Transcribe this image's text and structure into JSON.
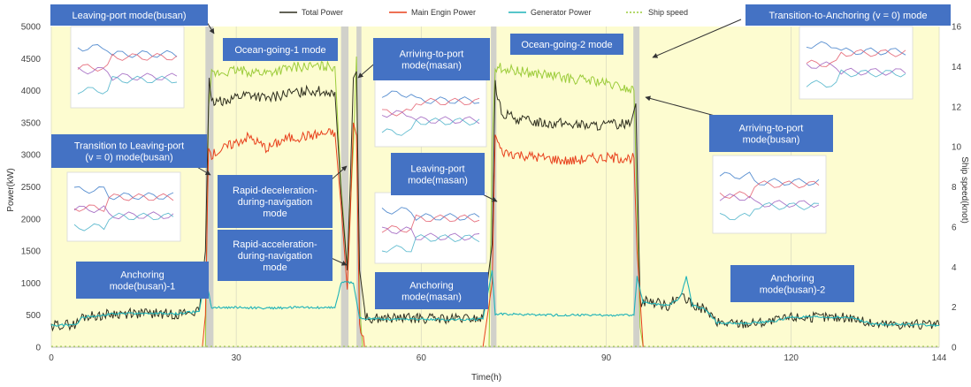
{
  "chart_data": {
    "type": "line",
    "xlabel": "Time(h)",
    "ylabel_left": "Power(kW)",
    "ylabel_right": "Ship speed(knot)",
    "xlim": [
      0,
      144
    ],
    "ylim_left": [
      0,
      5000
    ],
    "ylim_right": [
      0,
      16
    ],
    "x_ticks": [
      0,
      30,
      60,
      90,
      120,
      144
    ],
    "y_ticks_left": [
      0,
      500,
      1000,
      1500,
      2000,
      2500,
      3000,
      3500,
      4000,
      4500,
      5000
    ],
    "y_ticks_right": [
      0,
      2,
      4,
      6,
      8,
      10,
      12,
      14,
      16
    ],
    "legend_position": "top",
    "colors": {
      "plot_bg": "#fdfcd0",
      "total": "#2f2f1f",
      "main": "#e8401c",
      "generator": "#1fb3b8",
      "speed": "#9ccc3a",
      "band": "#c9c9c9",
      "label_box": "#4472c4"
    },
    "series": [
      {
        "name": "Total Power",
        "axis": "left",
        "points": [
          [
            0,
            340
          ],
          [
            4,
            350
          ],
          [
            5,
            470
          ],
          [
            10,
            520
          ],
          [
            15,
            530
          ],
          [
            20,
            520
          ],
          [
            24,
            560
          ],
          [
            25,
            1500
          ],
          [
            25.6,
            4200
          ],
          [
            26,
            3800
          ],
          [
            29,
            3880
          ],
          [
            32,
            3950
          ],
          [
            35,
            3870
          ],
          [
            38,
            3950
          ],
          [
            42,
            4000
          ],
          [
            46,
            3980
          ],
          [
            47,
            2400
          ],
          [
            48,
            1200
          ],
          [
            48.5,
            2600
          ],
          [
            49,
            4200
          ],
          [
            49.5,
            4300
          ],
          [
            50,
            1200
          ],
          [
            51,
            460
          ],
          [
            55,
            450
          ],
          [
            60,
            450
          ],
          [
            65,
            440
          ],
          [
            70,
            450
          ],
          [
            71.5,
            1600
          ],
          [
            72,
            4100
          ],
          [
            73,
            3650
          ],
          [
            76,
            3550
          ],
          [
            80,
            3500
          ],
          [
            84,
            3480
          ],
          [
            88,
            3450
          ],
          [
            92,
            3480
          ],
          [
            94,
            3500
          ],
          [
            94.8,
            3800
          ],
          [
            95.5,
            700
          ],
          [
            97,
            720
          ],
          [
            100,
            650
          ],
          [
            102,
            800
          ],
          [
            104,
            650
          ],
          [
            106,
            600
          ],
          [
            108,
            380
          ],
          [
            112,
            370
          ],
          [
            117,
            400
          ],
          [
            120,
            470
          ],
          [
            125,
            470
          ],
          [
            130,
            460
          ],
          [
            133,
            360
          ],
          [
            137,
            360
          ],
          [
            144,
            340
          ]
        ]
      },
      {
        "name": "Main Engin Power",
        "axis": "left",
        "points": [
          [
            0,
            0
          ],
          [
            24.5,
            0
          ],
          [
            25,
            500
          ],
          [
            25.5,
            3100
          ],
          [
            26,
            3000
          ],
          [
            29,
            3150
          ],
          [
            32,
            3280
          ],
          [
            35,
            3100
          ],
          [
            38,
            3250
          ],
          [
            42,
            3300
          ],
          [
            46,
            3350
          ],
          [
            47,
            2200
          ],
          [
            48,
            900
          ],
          [
            48.5,
            2100
          ],
          [
            49,
            3500
          ],
          [
            49.5,
            3300
          ],
          [
            50,
            300
          ],
          [
            51,
            0
          ],
          [
            70,
            0
          ],
          [
            71.5,
            1000
          ],
          [
            72,
            3300
          ],
          [
            73,
            3050
          ],
          [
            76,
            3000
          ],
          [
            80,
            2950
          ],
          [
            84,
            2900
          ],
          [
            88,
            2950
          ],
          [
            92,
            2950
          ],
          [
            94.5,
            2950
          ],
          [
            95,
            1500
          ],
          [
            96,
            0
          ],
          [
            144,
            0
          ]
        ]
      },
      {
        "name": "Generator Power",
        "axis": "left",
        "points": [
          [
            0,
            340
          ],
          [
            4,
            350
          ],
          [
            5,
            470
          ],
          [
            10,
            520
          ],
          [
            15,
            530
          ],
          [
            20,
            520
          ],
          [
            24,
            560
          ],
          [
            25,
            1100
          ],
          [
            26,
            620
          ],
          [
            30,
            620
          ],
          [
            35,
            610
          ],
          [
            40,
            620
          ],
          [
            46,
            620
          ],
          [
            47,
            1000
          ],
          [
            48,
            1020
          ],
          [
            49,
            1000
          ],
          [
            50,
            450
          ],
          [
            55,
            440
          ],
          [
            60,
            440
          ],
          [
            65,
            430
          ],
          [
            70,
            440
          ],
          [
            71.5,
            1200
          ],
          [
            72,
            520
          ],
          [
            76,
            510
          ],
          [
            80,
            500
          ],
          [
            84,
            500
          ],
          [
            88,
            500
          ],
          [
            92,
            500
          ],
          [
            94.5,
            500
          ],
          [
            95,
            1100
          ],
          [
            96,
            700
          ],
          [
            100,
            650
          ],
          [
            102,
            780
          ],
          [
            103,
            1100
          ],
          [
            104,
            650
          ],
          [
            106,
            600
          ],
          [
            108,
            380
          ],
          [
            112,
            370
          ],
          [
            117,
            400
          ],
          [
            120,
            470
          ],
          [
            125,
            470
          ],
          [
            130,
            460
          ],
          [
            133,
            360
          ],
          [
            137,
            360
          ],
          [
            144,
            340
          ]
        ]
      },
      {
        "name": "Ship speed",
        "axis": "right",
        "points": [
          [
            0,
            0
          ],
          [
            25,
            0
          ],
          [
            25.5,
            12
          ],
          [
            26,
            13.6
          ],
          [
            30,
            13.8
          ],
          [
            35,
            13.7
          ],
          [
            40,
            14
          ],
          [
            46,
            14
          ],
          [
            47,
            8
          ],
          [
            48,
            4
          ],
          [
            49,
            10
          ],
          [
            49.5,
            14.5
          ],
          [
            50,
            2
          ],
          [
            50.5,
            0
          ],
          [
            71,
            0
          ],
          [
            71.5,
            10
          ],
          [
            72,
            14
          ],
          [
            75,
            13.8
          ],
          [
            80,
            13.6
          ],
          [
            84,
            13.4
          ],
          [
            88,
            13.3
          ],
          [
            92,
            13.0
          ],
          [
            94.5,
            12.8
          ],
          [
            95.5,
            1
          ],
          [
            96,
            0
          ],
          [
            144,
            0
          ]
        ]
      }
    ],
    "mode_bands": [
      {
        "x0": 25.0,
        "x1": 26.3
      },
      {
        "x0": 47.0,
        "x1": 48.2
      },
      {
        "x0": 49.5,
        "x1": 50.3
      },
      {
        "x0": 71.3,
        "x1": 72.2
      },
      {
        "x0": 94.4,
        "x1": 95.4
      }
    ],
    "annotations": [
      {
        "lines": [
          "Leaving-port  mode(busan)"
        ]
      },
      {
        "lines": [
          "Ocean-going-1 mode"
        ]
      },
      {
        "lines": [
          "Arriving-to-port",
          "mode(masan)"
        ]
      },
      {
        "lines": [
          "Ocean-going-2 mode"
        ]
      },
      {
        "lines": [
          "Transition-to-Anchoring (v = 0) mode"
        ]
      },
      {
        "lines": [
          "Transition to Leaving-port",
          "(v = 0) mode(busan)"
        ]
      },
      {
        "lines": [
          "Rapid-deceleration-",
          "during-navigation",
          "mode"
        ]
      },
      {
        "lines": [
          "Leaving-port",
          "mode(masan)"
        ]
      },
      {
        "lines": [
          "Arriving-to-port",
          "mode(busan)"
        ]
      },
      {
        "lines": [
          "Rapid-acceleration-",
          "during-navigation",
          "mode"
        ]
      },
      {
        "lines": [
          "Anchoring",
          "mode(busan)-1"
        ]
      },
      {
        "lines": [
          "Anchoring",
          "mode(masan)"
        ]
      },
      {
        "lines": [
          "Anchoring",
          "mode(busan)-2"
        ]
      }
    ]
  }
}
